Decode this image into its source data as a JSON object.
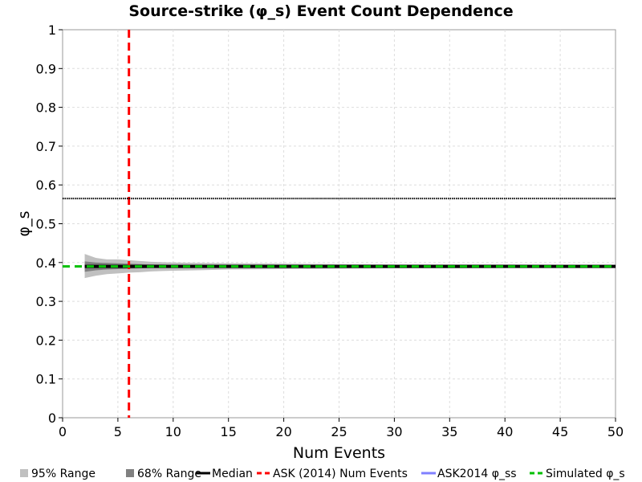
{
  "chart_data": {
    "type": "line",
    "title": "Source-strike (φ_s) Event Count Dependence",
    "xlabel": "Num Events",
    "ylabel": "φ_s",
    "xlim": [
      0,
      50
    ],
    "ylim": [
      0,
      1
    ],
    "x_ticks": [
      "0",
      "5",
      "10",
      "15",
      "20",
      "25",
      "30",
      "35",
      "40",
      "45",
      "50"
    ],
    "y_ticks": [
      "0",
      "0.1",
      "0.2",
      "0.3",
      "0.4",
      "0.5",
      "0.6",
      "0.7",
      "0.8",
      "0.9",
      "1"
    ],
    "grid": true,
    "legend_position": "bottom",
    "x": [
      2,
      3,
      4,
      5,
      6,
      7,
      8,
      9,
      10,
      12,
      15,
      20,
      25,
      30,
      35,
      40,
      45,
      50
    ],
    "series": [
      {
        "name": "95% Range",
        "kind": "band",
        "color": "#c0c0c0",
        "lower": [
          0.36,
          0.366,
          0.37,
          0.372,
          0.374,
          0.375,
          0.377,
          0.378,
          0.379,
          0.38,
          0.382,
          0.383,
          0.384,
          0.385,
          0.385,
          0.386,
          0.386,
          0.386
        ],
        "upper": [
          0.422,
          0.412,
          0.408,
          0.408,
          0.406,
          0.404,
          0.402,
          0.401,
          0.4,
          0.399,
          0.398,
          0.397,
          0.396,
          0.395,
          0.395,
          0.395,
          0.394,
          0.394
        ]
      },
      {
        "name": "68% Range",
        "kind": "band",
        "color": "#808080",
        "lower": [
          0.376,
          0.38,
          0.382,
          0.383,
          0.384,
          0.385,
          0.386,
          0.386,
          0.387,
          0.387,
          0.388,
          0.388,
          0.388,
          0.389,
          0.389,
          0.389,
          0.389,
          0.389
        ],
        "upper": [
          0.403,
          0.4,
          0.399,
          0.398,
          0.397,
          0.396,
          0.395,
          0.395,
          0.394,
          0.394,
          0.393,
          0.393,
          0.392,
          0.392,
          0.392,
          0.392,
          0.392,
          0.392
        ]
      },
      {
        "name": "Median",
        "kind": "line",
        "color": "#000000",
        "values": [
          0.39,
          0.39,
          0.39,
          0.39,
          0.39,
          0.39,
          0.39,
          0.39,
          0.39,
          0.39,
          0.39,
          0.39,
          0.39,
          0.39,
          0.39,
          0.39,
          0.39,
          0.39
        ]
      },
      {
        "name": "ASK (2014) Num Events",
        "kind": "vline",
        "color": "#ff0000",
        "x_value": 6
      },
      {
        "name": "ASK2014 φ_ss",
        "kind": "hline",
        "color": "#8080ff",
        "y_value": 0.565
      },
      {
        "name": "Simulated φ_s",
        "kind": "hline",
        "color": "#00c000",
        "y_value": 0.39
      }
    ]
  }
}
